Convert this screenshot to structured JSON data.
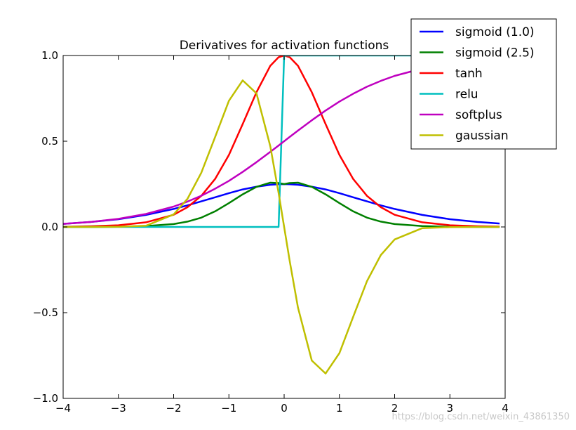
{
  "chart_data": {
    "type": "line",
    "title": "Derivatives for activation functions",
    "xlabel": "",
    "ylabel": "",
    "xlim": [
      -4,
      4
    ],
    "ylim": [
      -1.0,
      1.0
    ],
    "xticks": [
      -4,
      -3,
      -2,
      -1,
      0,
      1,
      2,
      3,
      4
    ],
    "xtick_labels": [
      "−4",
      "−3",
      "−2",
      "−1",
      "0",
      "1",
      "2",
      "3",
      "4"
    ],
    "yticks": [
      -1.0,
      -0.5,
      0.0,
      0.5,
      1.0
    ],
    "ytick_labels": [
      "−1.0",
      "−0.5",
      "0.0",
      "0.5",
      "1.0"
    ],
    "grid": false,
    "legend_position": "top-right",
    "x": [
      -4.0,
      -3.5,
      -3.0,
      -2.5,
      -2.0,
      -1.75,
      -1.5,
      -1.25,
      -1.0,
      -0.75,
      -0.5,
      -0.25,
      -0.1,
      0.0,
      0.1,
      0.25,
      0.5,
      0.75,
      1.0,
      1.25,
      1.5,
      1.75,
      2.0,
      2.5,
      3.0,
      3.5,
      3.9
    ],
    "series": [
      {
        "name": "sigmoid (1.0)",
        "color": "#0000ff",
        "values": [
          0.018,
          0.029,
          0.045,
          0.07,
          0.105,
          0.126,
          0.149,
          0.173,
          0.197,
          0.219,
          0.235,
          0.246,
          0.249,
          0.25,
          0.249,
          0.246,
          0.235,
          0.219,
          0.197,
          0.173,
          0.149,
          0.126,
          0.105,
          0.07,
          0.045,
          0.029,
          0.02
        ]
      },
      {
        "name": "sigmoid (2.5)",
        "color": "#008000",
        "values": [
          0.0,
          0.0,
          0.001,
          0.005,
          0.017,
          0.031,
          0.054,
          0.091,
          0.139,
          0.19,
          0.234,
          0.258,
          0.256,
          0.25,
          0.256,
          0.258,
          0.234,
          0.19,
          0.139,
          0.091,
          0.054,
          0.031,
          0.017,
          0.005,
          0.001,
          0.0,
          0.0
        ]
      },
      {
        "name": "tanh",
        "color": "#ff0000",
        "values": [
          0.001,
          0.004,
          0.01,
          0.027,
          0.071,
          0.115,
          0.181,
          0.28,
          0.42,
          0.6,
          0.786,
          0.94,
          0.99,
          1.0,
          0.99,
          0.94,
          0.786,
          0.6,
          0.42,
          0.28,
          0.181,
          0.115,
          0.071,
          0.027,
          0.01,
          0.004,
          0.002
        ]
      },
      {
        "name": "relu",
        "color": "#00bfbf",
        "values": [
          0.0,
          0.0,
          0.0,
          0.0,
          0.0,
          0.0,
          0.0,
          0.0,
          0.0,
          0.0,
          0.0,
          0.0,
          0.0,
          1.0,
          1.0,
          1.0,
          1.0,
          1.0,
          1.0,
          1.0,
          1.0,
          1.0,
          1.0,
          1.0,
          1.0,
          1.0,
          1.0
        ]
      },
      {
        "name": "softplus",
        "color": "#bf00bf",
        "values": [
          0.018,
          0.029,
          0.047,
          0.076,
          0.119,
          0.148,
          0.182,
          0.223,
          0.269,
          0.321,
          0.378,
          0.438,
          0.475,
          0.5,
          0.525,
          0.562,
          0.622,
          0.679,
          0.731,
          0.777,
          0.818,
          0.852,
          0.881,
          0.924,
          0.953,
          0.971,
          0.98
        ]
      },
      {
        "name": "gaussian",
        "color": "#bfbf00",
        "values": [
          0.0,
          0.0,
          0.001,
          0.007,
          0.073,
          0.164,
          0.316,
          0.524,
          0.736,
          0.855,
          0.779,
          0.47,
          0.198,
          0.0,
          -0.198,
          -0.47,
          -0.779,
          -0.855,
          -0.736,
          -0.524,
          -0.316,
          -0.164,
          -0.073,
          -0.007,
          -0.001,
          0.0,
          0.0
        ]
      }
    ]
  },
  "watermark": "https://blog.csdn.net/weixin_43861350"
}
